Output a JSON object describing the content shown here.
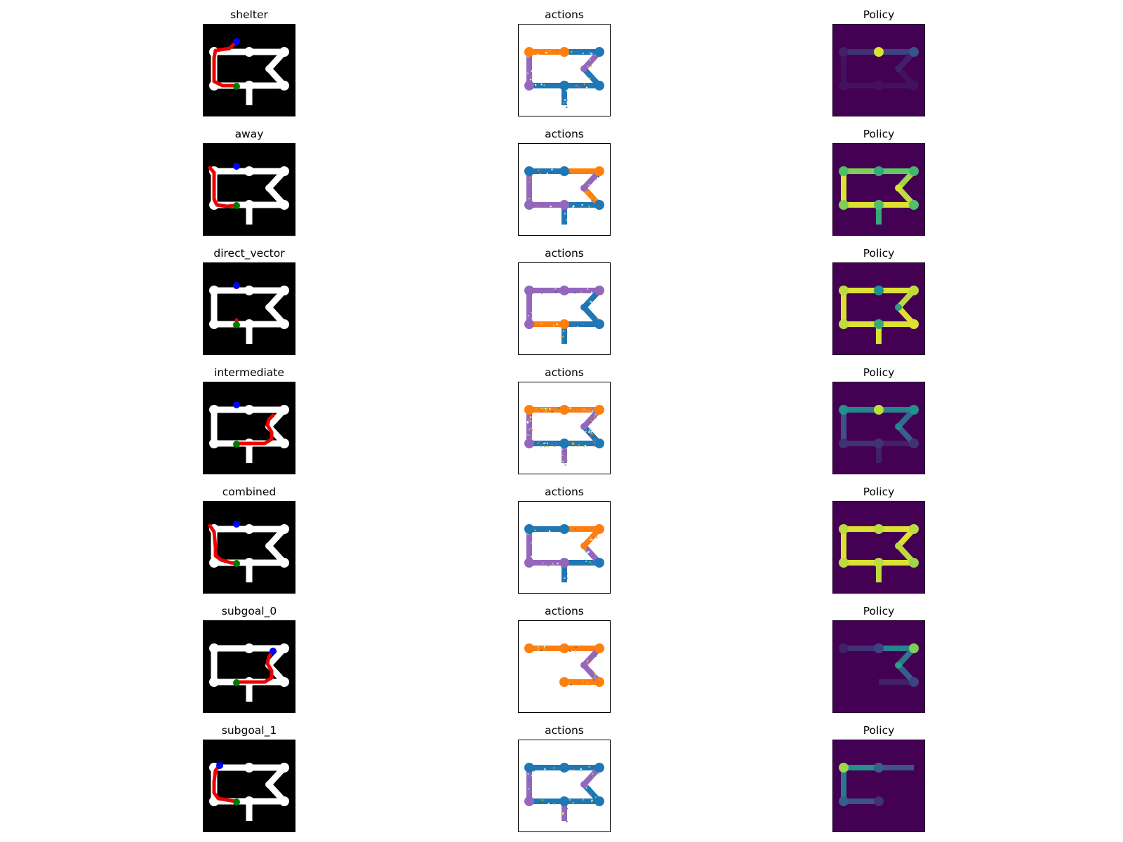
{
  "rows": [
    {
      "title": "shelter",
      "actions_title": "actions",
      "policy_title": "Policy",
      "route": [
        [
          48,
          25
        ],
        [
          38,
          35
        ],
        [
          18,
          38
        ],
        [
          16,
          48
        ],
        [
          16,
          68
        ],
        [
          16,
          82
        ],
        [
          28,
          88
        ],
        [
          45,
          88
        ],
        [
          48,
          88
        ]
      ],
      "shelter": [
        48,
        25
      ],
      "start": [
        48,
        89
      ],
      "segment_colors": {
        "top_left": "#ff7f0e",
        "top_right": "#1f77b4",
        "left": "#9467bd",
        "bottom_left": "#1f77b4",
        "bottom_right": "#1f77b4",
        "diag_upper": "#9467bd",
        "diag_lower": "#1f77b4",
        "stem": "#1f77b4"
      },
      "noise": 0.15,
      "policy_levels": {
        "top_left": 0.15,
        "top_right": 0.2,
        "left": 0.05,
        "bottom_left": 0.05,
        "bottom_right": 0.05,
        "diag_upper": 0.1,
        "diag_lower": 0.05,
        "stem": 0.0,
        "n_tl": 0.1,
        "n_tm": 0.95,
        "n_tr": 0.25,
        "n_bl": 0.05,
        "n_bm": 0.05,
        "n_br": 0.05,
        "n_mid": 0.1
      }
    },
    {
      "title": "away",
      "actions_title": "actions",
      "policy_title": "Policy",
      "route": [
        [
          10,
          35
        ],
        [
          16,
          42
        ],
        [
          16,
          60
        ],
        [
          16,
          80
        ],
        [
          20,
          88
        ],
        [
          34,
          90
        ],
        [
          48,
          89
        ]
      ],
      "shelter": [
        48,
        33
      ],
      "start": [
        48,
        89
      ],
      "segment_colors": {
        "top_left": "#1f77b4",
        "top_right": "#ff7f0e",
        "left": "#9467bd",
        "bottom_left": "#9467bd",
        "bottom_right": "#1f77b4",
        "diag_upper": "#9467bd",
        "diag_lower": "#ff7f0e",
        "stem": "#1f77b4"
      },
      "noise": 0.15,
      "policy_levels": {
        "top_left": 0.8,
        "top_right": 0.75,
        "left": 0.95,
        "bottom_left": 0.95,
        "bottom_right": 0.95,
        "diag_upper": 0.85,
        "diag_lower": 0.9,
        "stem": 0.6,
        "n_tl": 0.7,
        "n_tm": 0.6,
        "n_tr": 0.65,
        "n_bl": 0.8,
        "n_bm": 0.7,
        "n_br": 0.7,
        "n_mid": 0.95
      }
    },
    {
      "title": "direct_vector",
      "actions_title": "actions",
      "policy_title": "Policy",
      "route": [
        [
          48,
          82
        ],
        [
          48,
          86
        ]
      ],
      "shelter": [
        48,
        33
      ],
      "start": [
        48,
        89
      ],
      "segment_colors": {
        "top_left": "#9467bd",
        "top_right": "#9467bd",
        "left": "#9467bd",
        "bottom_left": "#ff7f0e",
        "bottom_right": "#1f77b4",
        "diag_upper": "#1f77b4",
        "diag_lower": "#1f77b4",
        "stem": "#1f77b4"
      },
      "noise": 0.12,
      "policy_levels": {
        "top_left": 0.95,
        "top_right": 0.95,
        "left": 0.95,
        "bottom_left": 0.95,
        "bottom_right": 0.95,
        "diag_upper": 0.9,
        "diag_lower": 0.95,
        "stem": 0.95,
        "n_tl": 0.9,
        "n_tm": 0.5,
        "n_tr": 0.9,
        "n_bl": 0.9,
        "n_bm": 0.6,
        "n_br": 0.95,
        "n_mid": 0.55
      }
    },
    {
      "title": "intermediate",
      "actions_title": "actions",
      "policy_title": "Policy",
      "route": [
        [
          100,
          48
        ],
        [
          94,
          54
        ],
        [
          92,
          62
        ],
        [
          98,
          72
        ],
        [
          98,
          82
        ],
        [
          88,
          88
        ],
        [
          72,
          88
        ],
        [
          52,
          88
        ]
      ],
      "shelter": [
        48,
        33
      ],
      "start": [
        48,
        89
      ],
      "segment_colors": {
        "top_left": "#ff7f0e",
        "top_right": "#ff7f0e",
        "left": "#9467bd",
        "bottom_left": "#1f77b4",
        "bottom_right": "#1f77b4",
        "diag_upper": "#9467bd",
        "diag_lower": "#1f77b4",
        "stem": "#9467bd"
      },
      "noise": 0.4,
      "policy_levels": {
        "top_left": 0.45,
        "top_right": 0.45,
        "left": 0.25,
        "bottom_left": 0.15,
        "bottom_right": 0.1,
        "diag_upper": 0.35,
        "diag_lower": 0.3,
        "stem": 0.1,
        "n_tl": 0.5,
        "n_tm": 0.9,
        "n_tr": 0.5,
        "n_bl": 0.15,
        "n_bm": 0.15,
        "n_br": 0.15,
        "n_mid": 0.45
      }
    },
    {
      "title": "combined",
      "actions_title": "actions",
      "policy_title": "Policy",
      "route": [
        [
          10,
          35
        ],
        [
          16,
          44
        ],
        [
          18,
          66
        ],
        [
          18,
          78
        ],
        [
          26,
          84
        ],
        [
          40,
          88
        ],
        [
          48,
          89
        ]
      ],
      "shelter": [
        48,
        33
      ],
      "start": [
        48,
        89
      ],
      "segment_colors": {
        "top_left": "#1f77b4",
        "top_right": "#ff7f0e",
        "left": "#9467bd",
        "bottom_left": "#9467bd",
        "bottom_right": "#1f77b4",
        "diag_upper": "#ff7f0e",
        "diag_lower": "#9467bd",
        "stem": "#1f77b4"
      },
      "noise": 0.15,
      "policy_levels": {
        "top_left": 0.95,
        "top_right": 0.95,
        "left": 0.95,
        "bottom_left": 0.95,
        "bottom_right": 0.95,
        "diag_upper": 0.95,
        "diag_lower": 0.9,
        "stem": 0.9,
        "n_tl": 0.9,
        "n_tm": 0.9,
        "n_tr": 0.9,
        "n_bl": 0.9,
        "n_bm": 0.9,
        "n_br": 0.85,
        "n_mid": 0.9
      }
    },
    {
      "title": "subgoal_0",
      "actions_title": "actions",
      "policy_title": "Policy",
      "route": [
        [
          100,
          44
        ],
        [
          94,
          52
        ],
        [
          92,
          62
        ],
        [
          98,
          72
        ],
        [
          98,
          82
        ],
        [
          88,
          88
        ],
        [
          70,
          88
        ],
        [
          52,
          88
        ]
      ],
      "shelter": [
        100,
        44
      ],
      "start": [
        48,
        89
      ],
      "segment_colors": {
        "top_left": "#ff7f0e",
        "top_right": "#ff7f0e",
        "left": "none",
        "bottom_left": "none",
        "bottom_right": "#ff7f0e",
        "diag_upper": "#9467bd",
        "diag_lower": "#9467bd",
        "stem": "none"
      },
      "noise": 0.2,
      "policy_levels": {
        "top_left": 0.15,
        "top_right": 0.45,
        "left": -1,
        "bottom_left": -1,
        "bottom_right": 0.1,
        "diag_upper": 0.4,
        "diag_lower": 0.3,
        "stem": -1,
        "n_tl": 0.1,
        "n_tm": 0.2,
        "n_tr": 0.8,
        "n_bl": -1,
        "n_bm": -1,
        "n_br": 0.2,
        "n_mid": 0.55
      }
    },
    {
      "title": "subgoal_1",
      "actions_title": "actions",
      "policy_title": "Policy",
      "route": [
        [
          24,
          37
        ],
        [
          18,
          44
        ],
        [
          16,
          60
        ],
        [
          16,
          76
        ],
        [
          22,
          84
        ],
        [
          34,
          86
        ],
        [
          46,
          88
        ]
      ],
      "shelter": [
        24,
        37
      ],
      "start": [
        48,
        89
      ],
      "segment_colors": {
        "top_left": "#1f77b4",
        "top_right": "#1f77b4",
        "left": "#9467bd",
        "bottom_left": "#1f77b4",
        "bottom_right": "#1f77b4",
        "diag_upper": "#9467bd",
        "diag_lower": "#1f77b4",
        "stem": "#9467bd"
      },
      "noise": 0.15,
      "policy_levels": {
        "top_left": 0.5,
        "top_right": 0.25,
        "left": 0.4,
        "bottom_left": 0.25,
        "bottom_right": -1,
        "diag_upper": -1,
        "diag_lower": -1,
        "stem": -1,
        "n_tl": 0.85,
        "n_tm": 0.3,
        "n_tr": -1,
        "n_bl": 0.3,
        "n_bm": 0.15,
        "n_br": -1,
        "n_mid": -1
      }
    }
  ],
  "colors": {
    "maze_background": "#000000",
    "maze_track": "#ffffff",
    "route": "#ee0000",
    "shelter_marker": "#0000ff",
    "start_marker": "#007a00",
    "policy_background": "#440154"
  }
}
